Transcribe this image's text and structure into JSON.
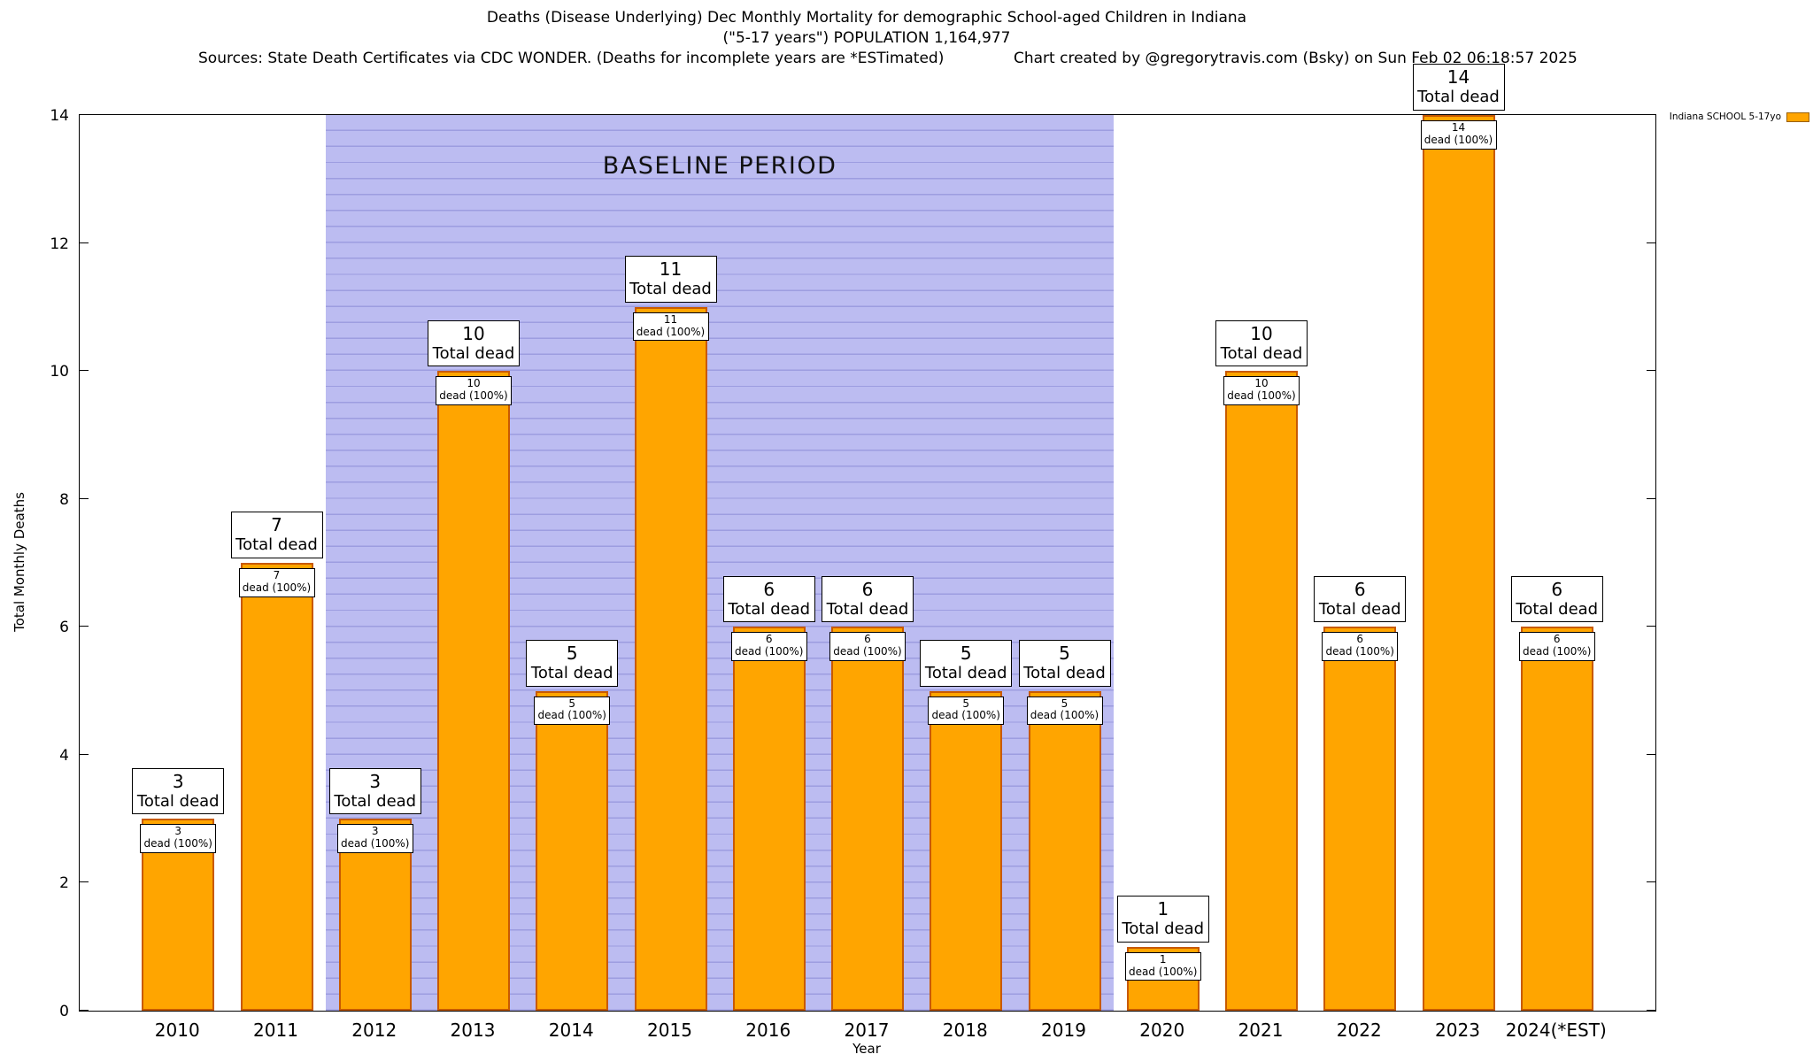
{
  "header": {
    "title_line1": "Deaths (Disease Underlying) Dec Monthly Mortality for demographic School-aged Children in Indiana",
    "title_line2": "(\"5-17 years\") POPULATION 1,164,977",
    "sources_note": "Sources: State Death Certificates via CDC WONDER. (Deaths for incomplete years are *ESTimated)",
    "credit_note": "Chart created by @gregorytravis.com (Bsky) on Sun Feb 02 06:18:57 2025"
  },
  "legend": {
    "label": "Indiana SCHOOL 5-17yo",
    "swatch_color": "#FFA500",
    "swatch_border_color": "#9a6000"
  },
  "chart_data": {
    "type": "bar",
    "title": "Deaths (Disease Underlying) Dec Monthly Mortality for demographic School-aged Children in Indiana (\"5-17 years\") POPULATION 1,164,977",
    "xlabel": "Year",
    "ylabel": "Total Monthly Deaths",
    "ylim": [
      0,
      14
    ],
    "yticks": [
      0,
      2,
      4,
      6,
      8,
      10,
      12,
      14
    ],
    "categories": [
      "2010",
      "2011",
      "2012",
      "2013",
      "2014",
      "2015",
      "2016",
      "2017",
      "2018",
      "2019",
      "2020",
      "2021",
      "2022",
      "2023",
      "2024(*EST)"
    ],
    "values": [
      3,
      7,
      3,
      10,
      5,
      11,
      6,
      6,
      5,
      5,
      1,
      10,
      6,
      14,
      6
    ],
    "series_name": "Indiana SCHOOL 5-17yo",
    "bar_color": "#FFA500",
    "bar_border_color": "#C85A00",
    "annotations": {
      "total_label": "Total dead",
      "inner_label": "dead (100%)"
    },
    "baseline": {
      "label": "BASELINE PERIOD",
      "start_category": "2012",
      "end_category": "2019",
      "fill_color": "#BCBCF1",
      "line_color": "#9D9DE0"
    },
    "grid": "fine horizontal stripes visible inside baseline band only",
    "legend_position": "top-right"
  }
}
